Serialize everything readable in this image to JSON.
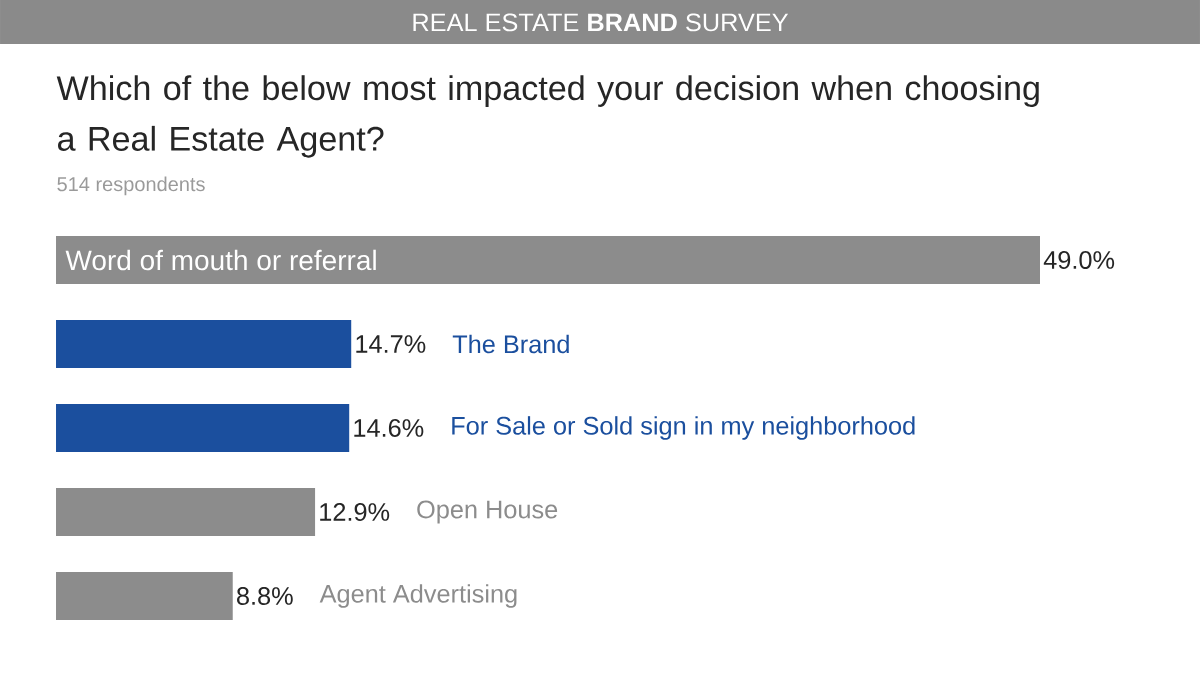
{
  "chart_data": {
    "type": "bar",
    "orientation": "horizontal",
    "title": "REAL ESTATE **BRAND** SURVEY",
    "subtitle": "Which of the below most impacted your decision when choosing a Real Estate Agent?",
    "annotations": [
      "514 respondents"
    ],
    "categories": [
      "Word of mouth or referral",
      "The Brand",
      "For Sale or Sold sign in my neighborhood",
      "Open House",
      "Agent Advertising"
    ],
    "values": [
      49.0,
      14.7,
      14.6,
      12.9,
      8.8
    ],
    "value_labels": [
      "49.0%",
      "14.7%",
      "14.6%",
      "12.9%",
      "8.8%"
    ],
    "colors": [
      "#8c8c8c",
      "#1b4f9e",
      "#1b4f9e",
      "#8c8c8c",
      "#8c8c8c"
    ]
  }
}
